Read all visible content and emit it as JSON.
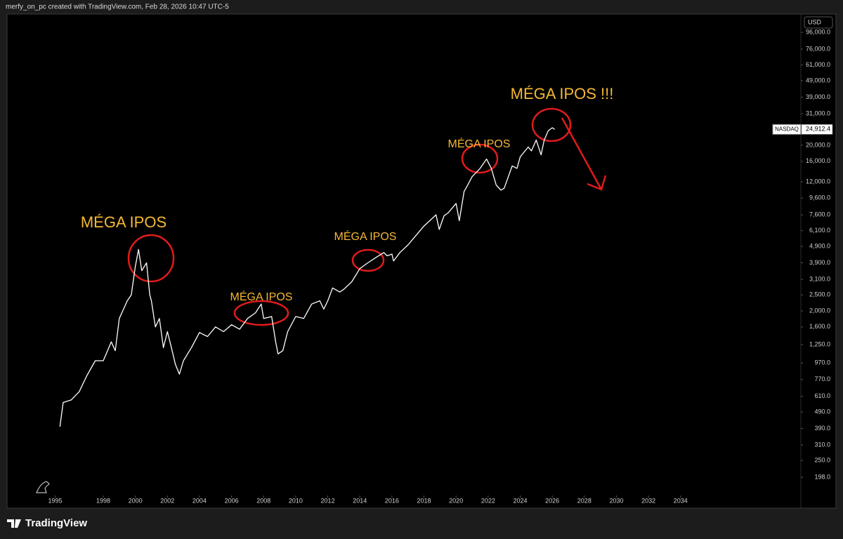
{
  "header": "merfy_on_pc created with TradingView.com, Feb 28, 2026 10:47 UTC-5",
  "footer_logo": "TradingView",
  "chart_data": {
    "type": "line",
    "currency": "USD",
    "log_scale": true,
    "grid": false,
    "x": [
      1995.3,
      1995.5,
      1996.0,
      1996.5,
      1997.0,
      1997.5,
      1998.0,
      1998.5,
      1998.75,
      1999.0,
      1999.5,
      1999.75,
      2000.0,
      2000.2,
      2000.4,
      2000.7,
      2000.9,
      2001.0,
      2001.25,
      2001.5,
      2001.75,
      2002.0,
      2002.25,
      2002.5,
      2002.75,
      2003.0,
      2003.5,
      2004.0,
      2004.5,
      2005.0,
      2005.5,
      2006.0,
      2006.5,
      2007.0,
      2007.5,
      2007.85,
      2008.0,
      2008.5,
      2008.75,
      2008.9,
      2009.2,
      2009.5,
      2010.0,
      2010.5,
      2011.0,
      2011.5,
      2011.75,
      2012.0,
      2012.3,
      2012.75,
      2013.0,
      2013.5,
      2014.0,
      2014.5,
      2015.0,
      2015.5,
      2015.7,
      2016.0,
      2016.1,
      2016.5,
      2017.0,
      2017.5,
      2018.0,
      2018.75,
      2018.95,
      2019.25,
      2019.5,
      2020.0,
      2020.2,
      2020.5,
      2020.75,
      2021.0,
      2021.5,
      2021.9,
      2022.2,
      2022.5,
      2022.8,
      2023.0,
      2023.5,
      2023.8,
      2024.0,
      2024.5,
      2024.7,
      2025.0,
      2025.3,
      2025.5,
      2025.75,
      2026.0,
      2026.15
    ],
    "series": [
      {
        "name": "NASDAQ",
        "color": "#ffffff",
        "values": [
          400,
          560,
          580,
          650,
          820,
          1000,
          1000,
          1300,
          1150,
          1800,
          2300,
          2500,
          3700,
          4700,
          3500,
          3900,
          2500,
          2300,
          1600,
          1800,
          1200,
          1500,
          1200,
          950,
          830,
          1000,
          1200,
          1480,
          1400,
          1600,
          1500,
          1650,
          1550,
          1800,
          1950,
          2200,
          1800,
          1850,
          1300,
          1100,
          1150,
          1500,
          1850,
          1800,
          2200,
          2300,
          2050,
          2300,
          2750,
          2600,
          2700,
          3000,
          3600,
          3900,
          4200,
          4500,
          4300,
          4400,
          4000,
          4500,
          5000,
          5700,
          6500,
          7600,
          6200,
          7500,
          7800,
          8900,
          7000,
          10500,
          11600,
          12900,
          14500,
          16500,
          14500,
          11500,
          10700,
          11000,
          15000,
          14500,
          17000,
          19500,
          18500,
          21500,
          17500,
          21500,
          24500,
          25500,
          24912.4
        ]
      }
    ],
    "price_tag": {
      "name": "NASDAQ",
      "value": 24912.4,
      "label": "24,912.4"
    },
    "xlim": [
      1992,
      2041.5
    ],
    "xticks": [
      1995,
      1998,
      2000,
      2002,
      2004,
      2006,
      2008,
      2010,
      2012,
      2014,
      2016,
      2018,
      2020,
      2022,
      2024,
      2026,
      2028,
      2030,
      2032,
      2034
    ],
    "ylim": [
      163,
      121400
    ],
    "yticks": [
      {
        "value": 198,
        "label": "198.0"
      },
      {
        "value": 250,
        "label": "250.0"
      },
      {
        "value": 310,
        "label": "310.0"
      },
      {
        "value": 390,
        "label": "390.0"
      },
      {
        "value": 490,
        "label": "490.0"
      },
      {
        "value": 610,
        "label": "610.0"
      },
      {
        "value": 770,
        "label": "770.0"
      },
      {
        "value": 970,
        "label": "970.0"
      },
      {
        "value": 1250,
        "label": "1,250.0"
      },
      {
        "value": 1600,
        "label": "1,600.0"
      },
      {
        "value": 2000,
        "label": "2,000.0"
      },
      {
        "value": 2500,
        "label": "2,500.0"
      },
      {
        "value": 3100,
        "label": "3,100.0"
      },
      {
        "value": 3900,
        "label": "3,900.0"
      },
      {
        "value": 4900,
        "label": "4,900.0"
      },
      {
        "value": 6100,
        "label": "6,100.0"
      },
      {
        "value": 7600,
        "label": "7,600.0"
      },
      {
        "value": 9600,
        "label": "9,600.0"
      },
      {
        "value": 12000,
        "label": "12,000.0"
      },
      {
        "value": 16000,
        "label": "16,000.0"
      },
      {
        "value": 20000,
        "label": "20,000.0"
      },
      {
        "value": 31000,
        "label": "31,000.0"
      },
      {
        "value": 39000,
        "label": "39,000.0"
      },
      {
        "value": 49000,
        "label": "49,000.0"
      },
      {
        "value": 61000,
        "label": "61,000.0"
      },
      {
        "value": 76000,
        "label": "76,000.0"
      },
      {
        "value": 96000,
        "label": "96,000.0"
      }
    ],
    "annotations": [
      "MÉGA IPOS",
      "MÉGA IPOS",
      "MÉGA IPOS",
      "MÉGA IPOS",
      "MÉGA IPOS !!!"
    ]
  }
}
